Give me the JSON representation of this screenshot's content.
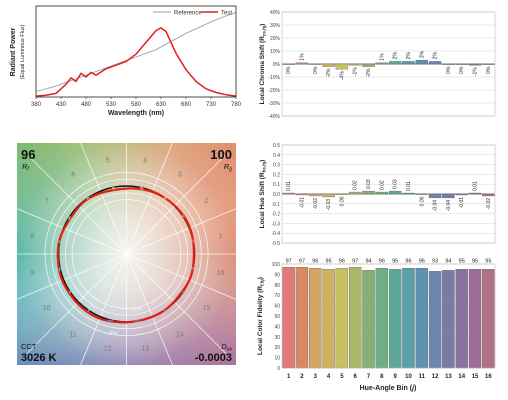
{
  "spectrum": {
    "ylabel": "Radiant Power",
    "ylabel2": "(Equal Luminous Flux)",
    "xlabel": "Wavelength (nm)",
    "xticks": [
      380,
      430,
      480,
      530,
      580,
      630,
      680,
      730,
      780
    ],
    "legend": {
      "reference": "Reference",
      "test": "Test"
    },
    "colors": {
      "reference": "#a0a0a0",
      "test": "#e02020"
    }
  },
  "chroma": {
    "ylabel": "Local Chroma Shift (R",
    "ylabel_sub": "cs,hj",
    "ylabel_end": ")",
    "yticks": [
      "40%",
      "30%",
      "20%",
      "10%",
      "0%",
      "-10%",
      "-20%",
      "-30%",
      "-40%"
    ],
    "labels": [
      "0%",
      "1%",
      "0%",
      "-2%",
      "-4%",
      "-1%",
      "-2%",
      "1%",
      "2%",
      "2%",
      "3%",
      "2%",
      "0%",
      "0%",
      "-1%",
      "0%"
    ]
  },
  "hue": {
    "ylabel": "Local Hue Shift (R",
    "ylabel_sub": "hs,hj",
    "ylabel_end": ")",
    "yticks": [
      "0.5",
      "0.4",
      "0.3",
      "0.2",
      "0.1",
      "0.0",
      "-0.1",
      "-0.2",
      "-0.3",
      "-0.4",
      "-0.5"
    ],
    "labels": [
      "0.01",
      "-0.01",
      "-0.02",
      "-0.03",
      "0.00",
      "0.02",
      "0.03",
      "0.02",
      "0.03",
      "0.01",
      "0.00",
      "-0.04",
      "-0.04",
      "-0.01",
      "0.01",
      "-0.02"
    ]
  },
  "fidelity": {
    "ylabel": "Local Color Fidelity (R",
    "ylabel_sub": "f,hj",
    "ylabel_end": ")",
    "xlabel": "Hue-Angle Bin (",
    "xlabel_var": "j",
    "xlabel_end": ")",
    "yticks": [
      "100",
      "90",
      "80",
      "70",
      "60",
      "50",
      "40",
      "30",
      "20",
      "10",
      "0"
    ],
    "labels": [
      "97",
      "97",
      "96",
      "95",
      "96",
      "97",
      "94",
      "96",
      "95",
      "96",
      "96",
      "93",
      "94",
      "95",
      "95",
      "95"
    ]
  },
  "vector": {
    "rf_value": "96",
    "rf_label": "R",
    "rf_sub": "f",
    "rg_value": "100",
    "rg_label": "R",
    "rg_sub": "g",
    "cct_label": "CCT",
    "cct_value": "3026 K",
    "duv_label": "D",
    "duv_sub": "uv",
    "duv_value": "-0.0003",
    "bin_numbers": [
      "1",
      "2",
      "3",
      "4",
      "5",
      "6",
      "7",
      "8",
      "9",
      "10",
      "11",
      "12",
      "13",
      "14",
      "15",
      "16"
    ],
    "ring_labels": [
      "-20%",
      "20%"
    ]
  },
  "chart_data": [
    {
      "type": "line",
      "title": "",
      "xlabel": "Wavelength (nm)",
      "ylabel": "Radiant Power (Equal Luminous Flux)",
      "xlim": [
        380,
        780
      ],
      "x": [
        380,
        400,
        420,
        430,
        440,
        450,
        460,
        470,
        480,
        490,
        500,
        520,
        540,
        560,
        580,
        600,
        620,
        630,
        640,
        650,
        660,
        680,
        700,
        720,
        740,
        760,
        780
      ],
      "series": [
        {
          "name": "Reference",
          "values": [
            0.06,
            0.09,
            0.12,
            0.14,
            0.16,
            0.18,
            0.2,
            0.22,
            0.24,
            0.26,
            0.28,
            0.32,
            0.36,
            0.4,
            0.44,
            0.48,
            0.52,
            0.55,
            0.58,
            0.61,
            0.64,
            0.7,
            0.75,
            0.8,
            0.85,
            0.89,
            0.93
          ]
        },
        {
          "name": "Test",
          "values": [
            0.01,
            0.02,
            0.04,
            0.09,
            0.14,
            0.21,
            0.17,
            0.26,
            0.22,
            0.27,
            0.24,
            0.31,
            0.35,
            0.39,
            0.47,
            0.6,
            0.73,
            0.76,
            0.72,
            0.6,
            0.48,
            0.3,
            0.17,
            0.09,
            0.05,
            0.025,
            0.01
          ]
        }
      ]
    },
    {
      "type": "bar",
      "title": "",
      "ylabel": "Local Chroma Shift (Rcs,hj)",
      "categories": [
        "1",
        "2",
        "3",
        "4",
        "5",
        "6",
        "7",
        "8",
        "9",
        "10",
        "11",
        "12",
        "13",
        "14",
        "15",
        "16"
      ],
      "values": [
        0,
        1,
        0,
        -2,
        -4,
        -1,
        -2,
        1,
        2,
        2,
        3,
        2,
        0,
        0,
        -1,
        0
      ],
      "ylim": [
        -40,
        40
      ]
    },
    {
      "type": "bar",
      "title": "",
      "ylabel": "Local Hue Shift (Rhs,hj)",
      "categories": [
        "1",
        "2",
        "3",
        "4",
        "5",
        "6",
        "7",
        "8",
        "9",
        "10",
        "11",
        "12",
        "13",
        "14",
        "15",
        "16"
      ],
      "values": [
        0.01,
        -0.01,
        -0.02,
        -0.03,
        0.0,
        0.02,
        0.03,
        0.02,
        0.03,
        0.01,
        0.0,
        -0.04,
        -0.04,
        -0.01,
        0.01,
        -0.02
      ],
      "ylim": [
        -0.5,
        0.5
      ]
    },
    {
      "type": "bar",
      "title": "",
      "xlabel": "Hue-Angle Bin (j)",
      "ylabel": "Local Color Fidelity (Rf,hj)",
      "categories": [
        "1",
        "2",
        "3",
        "4",
        "5",
        "6",
        "7",
        "8",
        "9",
        "10",
        "11",
        "12",
        "13",
        "14",
        "15",
        "16"
      ],
      "values": [
        97,
        97,
        96,
        95,
        96,
        97,
        94,
        96,
        95,
        96,
        96,
        93,
        94,
        95,
        95,
        95
      ],
      "ylim": [
        0,
        100
      ]
    },
    {
      "type": "scatter",
      "title": "",
      "values": {
        "Rf": 96,
        "Rg": 100,
        "CCT_K": 3026,
        "Duv": -0.0003
      }
    }
  ],
  "bin_colors": [
    "#e3787a",
    "#d58a64",
    "#d2a562",
    "#cfb260",
    "#c7c064",
    "#a8b868",
    "#88b076",
    "#6fae84",
    "#5ea89a",
    "#5aa0a8",
    "#6090b0",
    "#6c86ac",
    "#7c7aa4",
    "#8a72a0",
    "#9c6f98",
    "#b07282"
  ]
}
